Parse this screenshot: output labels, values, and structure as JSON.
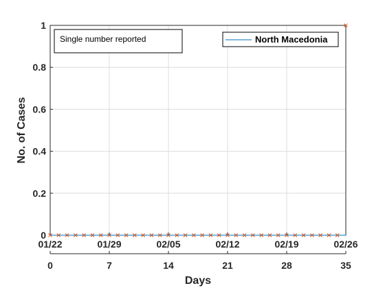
{
  "chart_data": {
    "type": "line",
    "title": "",
    "xlabel": "Days",
    "ylabel": "No. of Cases",
    "xlim": [
      0,
      35
    ],
    "ylim": [
      0,
      1
    ],
    "grid": true,
    "legend_position": "top-right",
    "annotation": "Single number reported",
    "x_ticks": [
      0,
      7,
      14,
      21,
      28,
      35
    ],
    "x_tick_labels": [
      "0",
      "7",
      "14",
      "21",
      "28",
      "35"
    ],
    "date_ticks": [
      0,
      7,
      14,
      21,
      28,
      35
    ],
    "date_tick_labels": [
      "01/22",
      "01/29",
      "02/05",
      "02/12",
      "02/19",
      "02/26"
    ],
    "y_ticks": [
      0,
      0.2,
      0.4,
      0.6,
      0.8,
      1
    ],
    "y_tick_labels": [
      "0",
      "0.2",
      "0.4",
      "0.6",
      "0.8",
      "1"
    ],
    "series": [
      {
        "name": "North Macedonia",
        "color": "#0072BD",
        "type": "line",
        "x": [
          0,
          35
        ],
        "y": [
          0,
          0
        ]
      },
      {
        "color": "#D95319",
        "type": "scatter",
        "marker": "x",
        "x": [
          0,
          1,
          2,
          3,
          4,
          5,
          6,
          7,
          8,
          9,
          10,
          11,
          12,
          13,
          14,
          15,
          16,
          17,
          18,
          19,
          20,
          21,
          22,
          23,
          24,
          25,
          26,
          27,
          28,
          29,
          30,
          31,
          32,
          33,
          34,
          35
        ],
        "y": [
          0,
          0,
          0,
          0,
          0,
          0,
          0,
          0,
          0,
          0,
          0,
          0,
          0,
          0,
          0,
          0,
          0,
          0,
          0,
          0,
          0,
          0,
          0,
          0,
          0,
          0,
          0,
          0,
          0,
          0,
          0,
          0,
          0,
          0,
          0,
          1
        ]
      }
    ]
  }
}
